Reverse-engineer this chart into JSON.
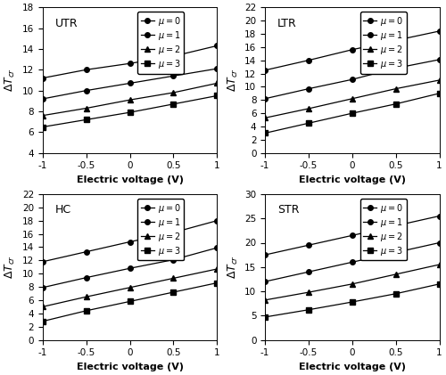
{
  "subplots": [
    {
      "title": "UTR",
      "ylabel": "$\\Delta T_{cr}$",
      "xlabel": "Electric voltage (V)",
      "xlim": [
        -1,
        1
      ],
      "ylim": [
        4,
        18
      ],
      "yticks": [
        4,
        6,
        8,
        10,
        12,
        14,
        16,
        18
      ],
      "xticks": [
        -1,
        -0.5,
        0,
        0.5,
        1
      ],
      "series": [
        {
          "mu": 0,
          "x": [
            -1,
            -0.5,
            0,
            0.5,
            1
          ],
          "y": [
            11.2,
            12.0,
            12.6,
            13.3,
            14.3
          ],
          "marker": "o",
          "markersize": 4
        },
        {
          "mu": 1,
          "x": [
            -1,
            -0.5,
            0,
            0.5,
            1
          ],
          "y": [
            9.2,
            10.0,
            10.7,
            11.4,
            12.1
          ],
          "marker": "o",
          "markersize": 4
        },
        {
          "mu": 2,
          "x": [
            -1,
            -0.5,
            0,
            0.5,
            1
          ],
          "y": [
            7.6,
            8.3,
            9.1,
            9.8,
            10.7
          ],
          "marker": "^",
          "markersize": 4
        },
        {
          "mu": 3,
          "x": [
            -1,
            -0.5,
            0,
            0.5,
            1
          ],
          "y": [
            6.5,
            7.2,
            7.9,
            8.7,
            9.5
          ],
          "marker": "s",
          "markersize": 4
        }
      ]
    },
    {
      "title": "LTR",
      "ylabel": "$\\Delta T_{cr}$",
      "xlabel": "Electric voltage (V)",
      "xlim": [
        -1,
        1
      ],
      "ylim": [
        0,
        22
      ],
      "yticks": [
        0,
        2,
        4,
        6,
        8,
        10,
        12,
        14,
        16,
        18,
        20,
        22
      ],
      "xticks": [
        -1,
        -0.5,
        0,
        0.5,
        1
      ],
      "series": [
        {
          "mu": 0,
          "x": [
            -1,
            -0.5,
            0,
            0.5,
            1
          ],
          "y": [
            12.5,
            14.0,
            15.6,
            17.0,
            18.4
          ],
          "marker": "o",
          "markersize": 4
        },
        {
          "mu": 1,
          "x": [
            -1,
            -0.5,
            0,
            0.5,
            1
          ],
          "y": [
            8.2,
            9.7,
            11.1,
            12.8,
            14.1
          ],
          "marker": "o",
          "markersize": 4
        },
        {
          "mu": 2,
          "x": [
            -1,
            -0.5,
            0,
            0.5,
            1
          ],
          "y": [
            5.3,
            6.7,
            8.2,
            9.7,
            11.0
          ],
          "marker": "^",
          "markersize": 4
        },
        {
          "mu": 3,
          "x": [
            -1,
            -0.5,
            0,
            0.5,
            1
          ],
          "y": [
            3.0,
            4.5,
            6.0,
            7.4,
            9.0
          ],
          "marker": "s",
          "markersize": 4
        }
      ]
    },
    {
      "title": "HC",
      "ylabel": "$\\Delta T_{cr}$",
      "xlabel": "Electric voltage (V)",
      "xlim": [
        -1,
        1
      ],
      "ylim": [
        0,
        22
      ],
      "yticks": [
        0,
        2,
        4,
        6,
        8,
        10,
        12,
        14,
        16,
        18,
        20,
        22
      ],
      "xticks": [
        -1,
        -0.5,
        0,
        0.5,
        1
      ],
      "series": [
        {
          "mu": 0,
          "x": [
            -1,
            -0.5,
            0,
            0.5,
            1
          ],
          "y": [
            11.8,
            13.3,
            14.8,
            16.2,
            18.0
          ],
          "marker": "o",
          "markersize": 4
        },
        {
          "mu": 1,
          "x": [
            -1,
            -0.5,
            0,
            0.5,
            1
          ],
          "y": [
            7.9,
            9.4,
            10.8,
            12.1,
            13.9
          ],
          "marker": "o",
          "markersize": 4
        },
        {
          "mu": 2,
          "x": [
            -1,
            -0.5,
            0,
            0.5,
            1
          ],
          "y": [
            5.0,
            6.5,
            7.9,
            9.3,
            10.7
          ],
          "marker": "^",
          "markersize": 4
        },
        {
          "mu": 3,
          "x": [
            -1,
            -0.5,
            0,
            0.5,
            1
          ],
          "y": [
            2.8,
            4.4,
            5.8,
            7.2,
            8.6
          ],
          "marker": "s",
          "markersize": 4
        }
      ]
    },
    {
      "title": "STR",
      "ylabel": "$\\Delta T_{cr}$",
      "xlabel": "Electric voltage (V)",
      "xlim": [
        -1,
        1
      ],
      "ylim": [
        0,
        30
      ],
      "yticks": [
        0,
        5,
        10,
        15,
        20,
        25,
        30
      ],
      "xticks": [
        -1,
        -0.5,
        0,
        0.5,
        1
      ],
      "series": [
        {
          "mu": 0,
          "x": [
            -1,
            -0.5,
            0,
            0.5,
            1
          ],
          "y": [
            17.5,
            19.5,
            21.5,
            23.5,
            25.5
          ],
          "marker": "o",
          "markersize": 4
        },
        {
          "mu": 1,
          "x": [
            -1,
            -0.5,
            0,
            0.5,
            1
          ],
          "y": [
            12.0,
            14.0,
            16.0,
            18.0,
            20.0
          ],
          "marker": "o",
          "markersize": 4
        },
        {
          "mu": 2,
          "x": [
            -1,
            -0.5,
            0,
            0.5,
            1
          ],
          "y": [
            8.2,
            9.8,
            11.5,
            13.5,
            15.5
          ],
          "marker": "^",
          "markersize": 4
        },
        {
          "mu": 3,
          "x": [
            -1,
            -0.5,
            0,
            0.5,
            1
          ],
          "y": [
            4.7,
            6.2,
            7.8,
            9.5,
            11.5
          ],
          "marker": "s",
          "markersize": 4
        }
      ]
    }
  ],
  "line_color": "#000000",
  "legend_labels": [
    "$\\mu = 0$",
    "$\\mu = 1$",
    "$\\mu = 2$",
    "$\\mu = 3$"
  ],
  "markers": [
    "o",
    "o",
    "^",
    "s"
  ],
  "label_fontsize": 8,
  "tick_fontsize": 7.5,
  "title_fontsize": 9,
  "legend_fontsize": 7
}
